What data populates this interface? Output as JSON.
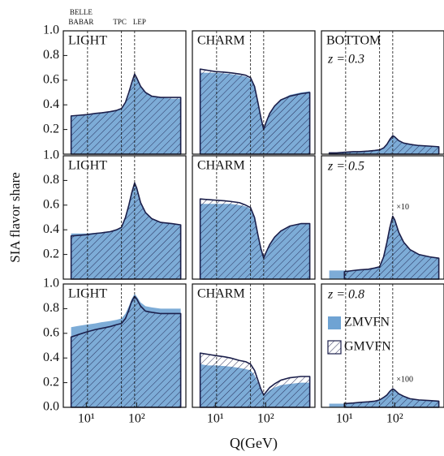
{
  "chart_data": [
    {
      "type": "area",
      "title": "LIGHT",
      "log_x": true,
      "xlim": [
        3.5,
        950
      ],
      "ylim": [
        0,
        1
      ],
      "yticks": [
        0.2,
        0.4,
        0.6,
        0.8,
        {
          "value": 1,
          "label": "1.0"
        }
      ],
      "vlines": [
        10.6,
        50,
        91.2
      ],
      "vline_labels": [
        [
          "BELLE",
          "BABAR"
        ],
        [
          "TPC"
        ],
        [
          "LEP"
        ]
      ],
      "x": [
        5,
        7,
        10,
        15,
        20,
        30,
        40,
        50,
        60,
        70,
        80,
        91.2,
        100,
        120,
        150,
        200,
        300,
        500,
        750
      ],
      "series": [
        {
          "color": "#6fa3d3",
          "values": [
            0.31,
            0.315,
            0.32,
            0.33,
            0.335,
            0.345,
            0.355,
            0.37,
            0.41,
            0.48,
            0.56,
            0.63,
            0.61,
            0.55,
            0.5,
            0.47,
            0.46,
            0.45,
            0.45
          ]
        },
        {
          "color": "#1b1f4b",
          "hatch": true,
          "values": [
            0.31,
            0.315,
            0.32,
            0.33,
            0.335,
            0.345,
            0.355,
            0.37,
            0.42,
            0.5,
            0.58,
            0.65,
            0.62,
            0.55,
            0.5,
            0.47,
            0.46,
            0.46,
            0.46
          ]
        }
      ]
    },
    {
      "type": "area",
      "title": "CHARM",
      "log_x": true,
      "xlim": [
        3.5,
        950
      ],
      "ylim": [
        0,
        1
      ],
      "vlines": [
        10.6,
        50,
        91.2
      ],
      "x": [
        5,
        7,
        10,
        15,
        20,
        30,
        40,
        50,
        60,
        70,
        80,
        91.2,
        100,
        120,
        150,
        200,
        300,
        500,
        750
      ],
      "series": [
        {
          "color": "#6fa3d3",
          "values": [
            0.66,
            0.66,
            0.66,
            0.655,
            0.65,
            0.64,
            0.63,
            0.61,
            0.54,
            0.41,
            0.29,
            0.2,
            0.25,
            0.33,
            0.39,
            0.44,
            0.48,
            0.5,
            0.51
          ]
        },
        {
          "color": "#1b1f4b",
          "hatch": true,
          "values": [
            0.69,
            0.68,
            0.67,
            0.665,
            0.66,
            0.65,
            0.64,
            0.62,
            0.55,
            0.42,
            0.3,
            0.2,
            0.25,
            0.33,
            0.39,
            0.44,
            0.47,
            0.49,
            0.5
          ]
        }
      ]
    },
    {
      "type": "area",
      "title": "BOTTOM",
      "annotation": "z = 0.3",
      "log_x": true,
      "xlim": [
        3.5,
        950
      ],
      "ylim": [
        0,
        1
      ],
      "vlines": [
        10.6,
        50,
        91.2
      ],
      "x": [
        5,
        7,
        10,
        15,
        20,
        30,
        40,
        50,
        60,
        70,
        80,
        91.2,
        100,
        120,
        150,
        200,
        300,
        500,
        750
      ],
      "series": [
        {
          "color": "#6fa3d3",
          "values": [
            0.01,
            0.01,
            0.015,
            0.02,
            0.02,
            0.025,
            0.03,
            0.035,
            0.05,
            0.08,
            0.12,
            0.15,
            0.14,
            0.11,
            0.09,
            0.08,
            0.07,
            0.065,
            0.06
          ]
        },
        {
          "color": "#1b1f4b",
          "hatch": true,
          "values": [
            0.01,
            0.01,
            0.015,
            0.02,
            0.02,
            0.025,
            0.03,
            0.035,
            0.05,
            0.08,
            0.12,
            0.15,
            0.14,
            0.11,
            0.09,
            0.08,
            0.07,
            0.065,
            0.06
          ]
        }
      ]
    },
    {
      "type": "area",
      "title": "LIGHT",
      "ylabel": "SIA flavor share",
      "log_x": true,
      "xlim": [
        3.5,
        950
      ],
      "ylim": [
        0,
        1
      ],
      "yticks": [
        0.2,
        0.4,
        0.6,
        0.8,
        {
          "value": 1,
          "label": "1.0"
        }
      ],
      "vlines": [
        10.6,
        50,
        91.2
      ],
      "x": [
        5,
        7,
        10,
        15,
        20,
        30,
        40,
        50,
        60,
        70,
        80,
        91.2,
        100,
        120,
        150,
        200,
        300,
        500,
        750
      ],
      "series": [
        {
          "color": "#6fa3d3",
          "values": [
            0.37,
            0.37,
            0.37,
            0.375,
            0.38,
            0.39,
            0.4,
            0.42,
            0.49,
            0.59,
            0.69,
            0.77,
            0.73,
            0.62,
            0.54,
            0.49,
            0.46,
            0.45,
            0.44
          ]
        },
        {
          "color": "#1b1f4b",
          "hatch": true,
          "values": [
            0.35,
            0.355,
            0.36,
            0.37,
            0.375,
            0.385,
            0.4,
            0.42,
            0.5,
            0.6,
            0.7,
            0.78,
            0.74,
            0.62,
            0.54,
            0.49,
            0.46,
            0.45,
            0.44
          ]
        }
      ]
    },
    {
      "type": "area",
      "title": "CHARM",
      "log_x": true,
      "xlim": [
        3.5,
        950
      ],
      "ylim": [
        0,
        1
      ],
      "vlines": [
        10.6,
        50,
        91.2
      ],
      "x": [
        5,
        7,
        10,
        15,
        20,
        30,
        40,
        50,
        60,
        70,
        80,
        91.2,
        100,
        120,
        150,
        200,
        300,
        500,
        750
      ],
      "series": [
        {
          "color": "#6fa3d3",
          "values": [
            0.61,
            0.61,
            0.61,
            0.61,
            0.61,
            0.6,
            0.59,
            0.57,
            0.49,
            0.35,
            0.24,
            0.17,
            0.21,
            0.28,
            0.34,
            0.39,
            0.43,
            0.45,
            0.45
          ]
        },
        {
          "color": "#1b1f4b",
          "hatch": true,
          "values": [
            0.65,
            0.645,
            0.64,
            0.635,
            0.63,
            0.62,
            0.6,
            0.58,
            0.5,
            0.36,
            0.25,
            0.17,
            0.21,
            0.28,
            0.34,
            0.39,
            0.43,
            0.45,
            0.45
          ]
        }
      ]
    },
    {
      "type": "area",
      "annotation": "z = 0.5",
      "scale_note": "×10",
      "log_x": true,
      "xlim": [
        3.5,
        950
      ],
      "ylim": [
        0,
        1
      ],
      "vlines": [
        10.6,
        50,
        91.2
      ],
      "x": [
        5,
        7,
        10,
        15,
        20,
        30,
        40,
        50,
        60,
        70,
        80,
        91.2,
        100,
        120,
        150,
        200,
        300,
        500,
        750
      ],
      "series": [
        {
          "color": "#6fa3d3",
          "values": [
            0.07,
            0.07,
            0.07,
            0.07,
            0.075,
            0.08,
            0.09,
            0.1,
            0.18,
            0.3,
            0.42,
            0.51,
            0.48,
            0.38,
            0.3,
            0.24,
            0.2,
            0.18,
            0.17
          ]
        },
        {
          "color": "#1b1f4b",
          "hatch": true,
          "values": [
            null,
            null,
            0.06,
            0.07,
            0.075,
            0.08,
            0.09,
            0.1,
            0.18,
            0.3,
            0.42,
            0.51,
            0.48,
            0.38,
            0.3,
            0.24,
            0.2,
            0.18,
            0.17
          ]
        }
      ]
    },
    {
      "type": "area",
      "title": "LIGHT",
      "log_x": true,
      "xlim": [
        3.5,
        950
      ],
      "ylim": [
        0,
        1
      ],
      "yticks": [
        {
          "value": 0,
          "label": "0.0"
        },
        0.2,
        0.4,
        0.6,
        0.8,
        {
          "value": 1,
          "label": "1.0"
        }
      ],
      "xticks": [
        {
          "value": 10,
          "label": "10¹"
        },
        {
          "value": 100,
          "label": "10²"
        }
      ],
      "vlines": [
        10.6,
        50,
        91.2
      ],
      "x": [
        5,
        7,
        10,
        15,
        20,
        30,
        40,
        50,
        60,
        70,
        80,
        91.2,
        100,
        120,
        150,
        200,
        300,
        500,
        750
      ],
      "series": [
        {
          "color": "#6fa3d3",
          "values": [
            0.65,
            0.66,
            0.67,
            0.68,
            0.69,
            0.7,
            0.71,
            0.72,
            0.76,
            0.82,
            0.88,
            0.92,
            0.9,
            0.85,
            0.82,
            0.81,
            0.8,
            0.8,
            0.8
          ]
        },
        {
          "color": "#1b1f4b",
          "hatch": true,
          "values": [
            0.57,
            0.59,
            0.61,
            0.63,
            0.64,
            0.655,
            0.67,
            0.68,
            0.72,
            0.79,
            0.86,
            0.9,
            0.88,
            0.82,
            0.78,
            0.77,
            0.76,
            0.76,
            0.76
          ]
        }
      ]
    },
    {
      "type": "area",
      "title": "CHARM",
      "xlabel": "Q(GeV)",
      "log_x": true,
      "xlim": [
        3.5,
        950
      ],
      "ylim": [
        0,
        1
      ],
      "xticks": [
        {
          "value": 10,
          "label": "10¹"
        },
        {
          "value": 100,
          "label": "10²"
        }
      ],
      "vlines": [
        10.6,
        50,
        91.2
      ],
      "x": [
        5,
        7,
        10,
        15,
        20,
        30,
        40,
        50,
        60,
        70,
        80,
        91.2,
        100,
        120,
        150,
        200,
        300,
        500,
        750
      ],
      "series": [
        {
          "color": "#6fa3d3",
          "values": [
            0.35,
            0.34,
            0.34,
            0.335,
            0.33,
            0.32,
            0.31,
            0.3,
            0.26,
            0.2,
            0.14,
            0.1,
            0.11,
            0.14,
            0.16,
            0.18,
            0.19,
            0.2,
            0.2
          ]
        },
        {
          "color": "#1b1f4b",
          "hatch": true,
          "values": [
            0.44,
            0.43,
            0.42,
            0.41,
            0.4,
            0.38,
            0.37,
            0.35,
            0.3,
            0.22,
            0.15,
            0.1,
            0.12,
            0.16,
            0.19,
            0.22,
            0.24,
            0.25,
            0.25
          ]
        }
      ]
    },
    {
      "type": "area",
      "annotation": "z = 0.8",
      "scale_note": "×100",
      "legend": "left",
      "log_x": true,
      "xlim": [
        3.5,
        950
      ],
      "ylim": [
        0,
        1
      ],
      "xticks": [
        {
          "value": 10,
          "label": "10¹"
        },
        {
          "value": 100,
          "label": "10²"
        }
      ],
      "vlines": [
        10.6,
        50,
        91.2
      ],
      "x": [
        5,
        7,
        10,
        15,
        20,
        30,
        40,
        50,
        60,
        70,
        80,
        91.2,
        100,
        120,
        150,
        200,
        300,
        500,
        750
      ],
      "series": [
        {
          "name": "ZMVFN",
          "color": "#6fa3d3",
          "values": [
            0.03,
            0.03,
            0.03,
            0.035,
            0.04,
            0.045,
            0.05,
            0.06,
            0.08,
            0.1,
            0.13,
            0.15,
            0.14,
            0.11,
            0.09,
            0.07,
            0.06,
            0.055,
            0.05
          ]
        },
        {
          "name": "GMVFN",
          "color": "#1b1f4b",
          "hatch": true,
          "values": [
            null,
            null,
            0.03,
            0.035,
            0.04,
            0.045,
            0.05,
            0.06,
            0.08,
            0.1,
            0.13,
            0.15,
            0.14,
            0.11,
            0.09,
            0.07,
            0.06,
            0.055,
            0.05
          ]
        }
      ]
    }
  ]
}
